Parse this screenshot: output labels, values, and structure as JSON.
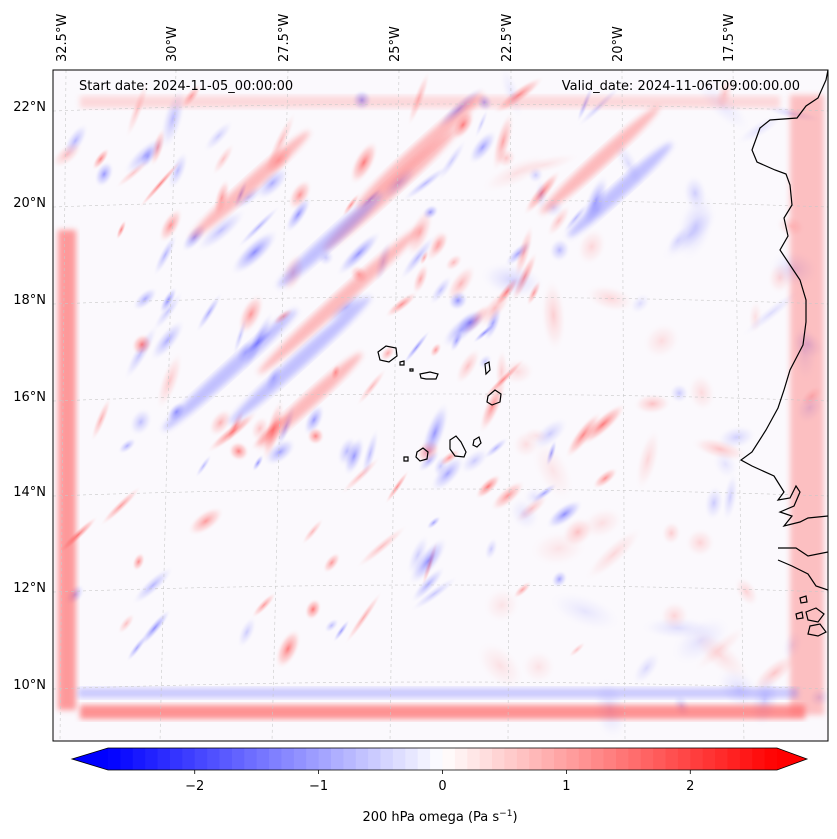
{
  "map": {
    "annotation_left": "Start date: 2024-11-05_00:00:00",
    "annotation_right": "Valid_date: 2024-11-06T09:00:00.00",
    "longitude_labels": [
      "32.5°W",
      "30°W",
      "27.5°W",
      "25°W",
      "22.5°W",
      "20°W",
      "17.5°W"
    ],
    "latitude_labels": [
      "22°N",
      "20°N",
      "18°N",
      "16°N",
      "14°N",
      "12°N",
      "10°N"
    ],
    "gridlines": true,
    "field": "200 hPa omega",
    "colormap": "bwr"
  },
  "colorbar": {
    "label": "200 hPa omega (Pa s",
    "label_sup": "−1",
    "label_close": ")",
    "ticks": [
      "−2",
      "−1",
      "0",
      "1",
      "2"
    ],
    "range": [
      -2.7,
      2.7
    ],
    "extend": "both",
    "low_color": "#0000ff",
    "mid_color": "#ffffff",
    "high_color": "#ff0000"
  }
}
